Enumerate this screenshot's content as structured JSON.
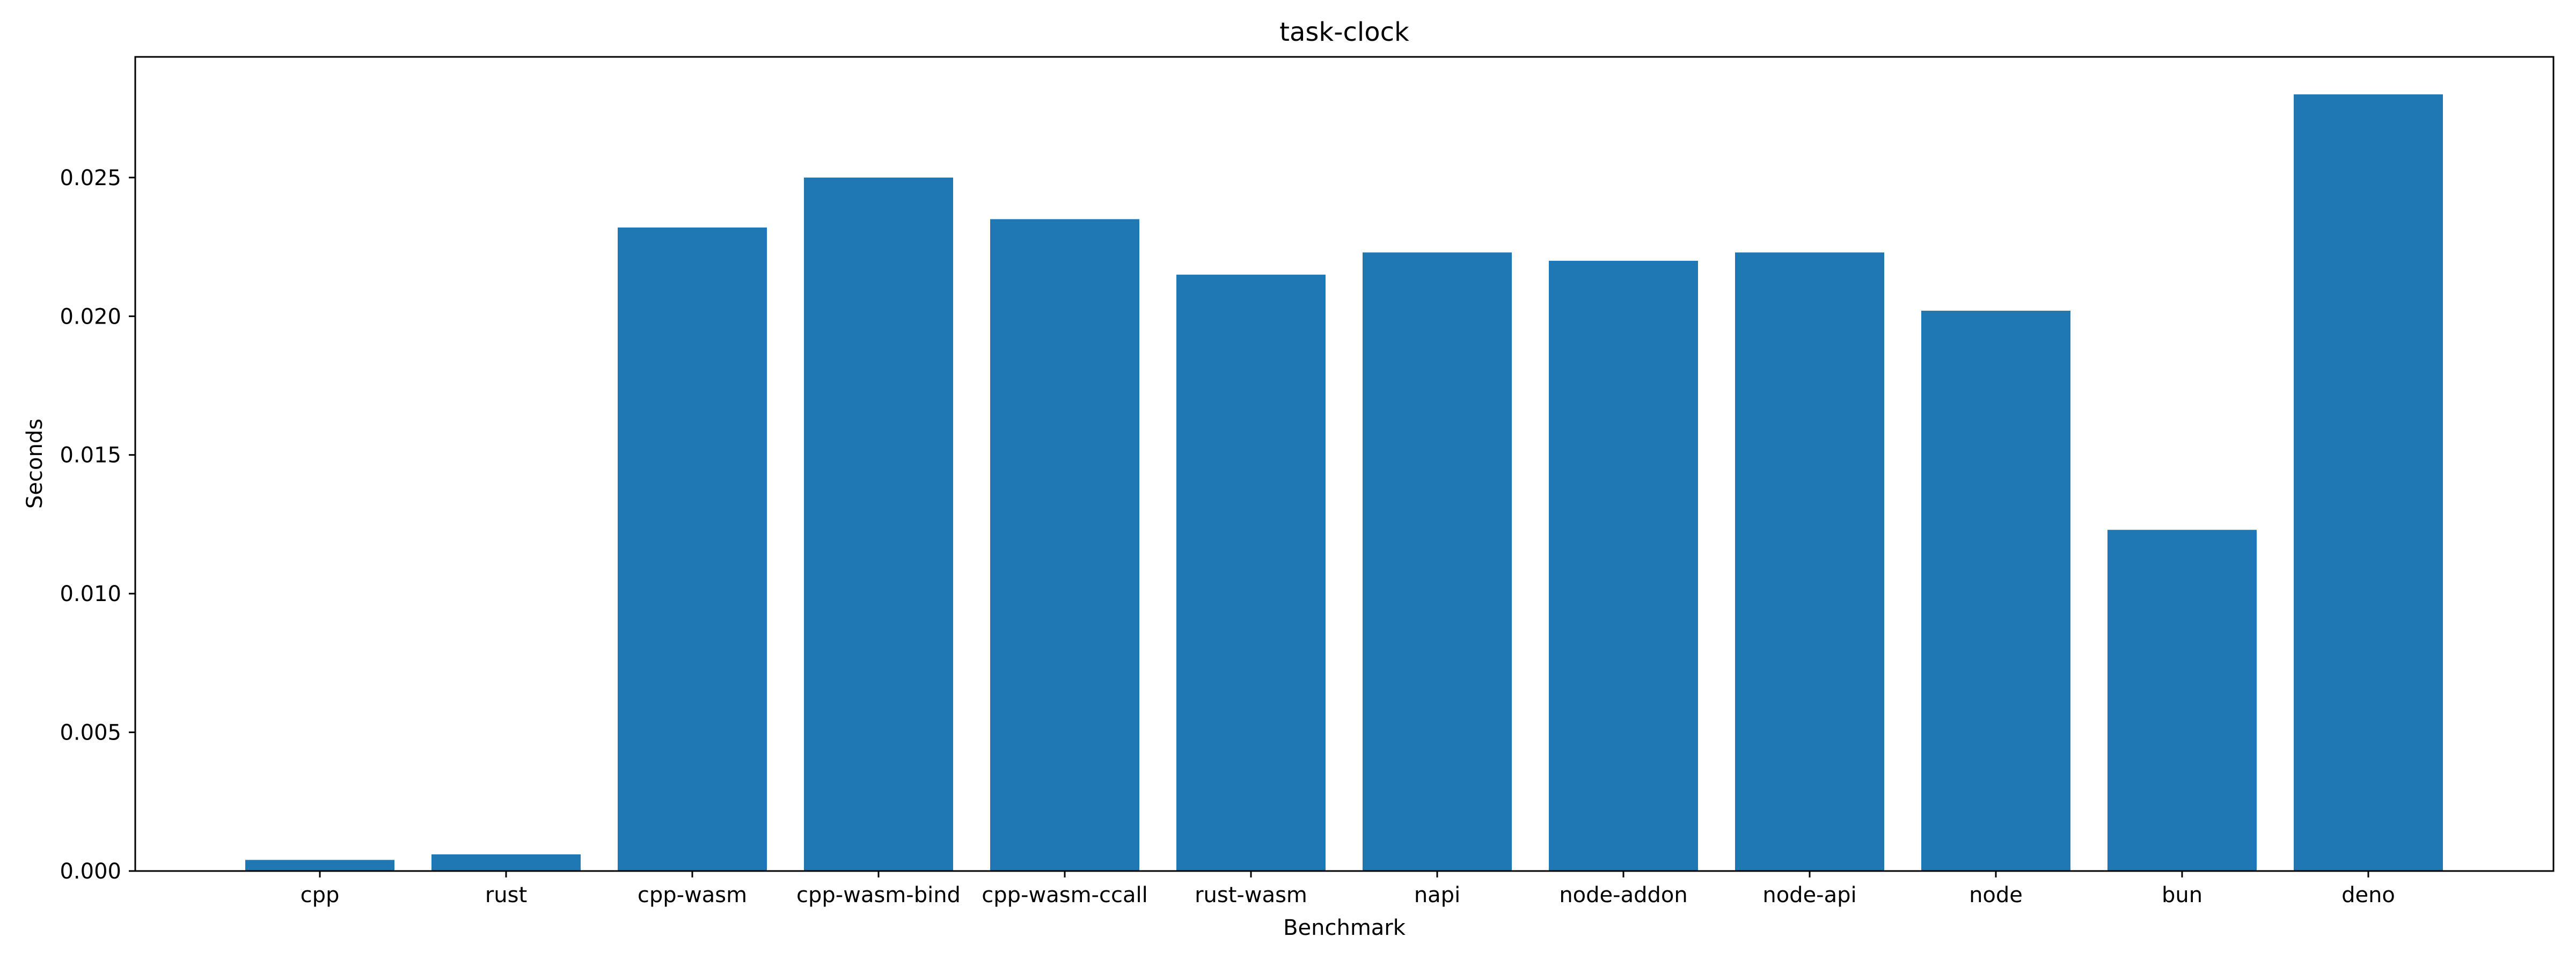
{
  "chart_data": {
    "type": "bar",
    "title": "task-clock",
    "xlabel": "Benchmark",
    "ylabel": "Seconds",
    "categories": [
      "cpp",
      "rust",
      "cpp-wasm",
      "cpp-wasm-bind",
      "cpp-wasm-ccall",
      "rust-wasm",
      "napi",
      "node-addon",
      "node-api",
      "node",
      "bun",
      "deno"
    ],
    "values": [
      0.0004,
      0.0006,
      0.0232,
      0.025,
      0.0235,
      0.0215,
      0.0223,
      0.022,
      0.0223,
      0.0202,
      0.0123,
      0.028
    ],
    "ylim": [
      0,
      0.02935
    ],
    "yticks": [
      0,
      0.005,
      0.01,
      0.015,
      0.02,
      0.025
    ],
    "ytick_labels": [
      "0.000",
      "0.005",
      "0.010",
      "0.015",
      "0.020",
      "0.025"
    ],
    "bar_color": "#1f77b4",
    "grid": false,
    "legend": "none"
  }
}
